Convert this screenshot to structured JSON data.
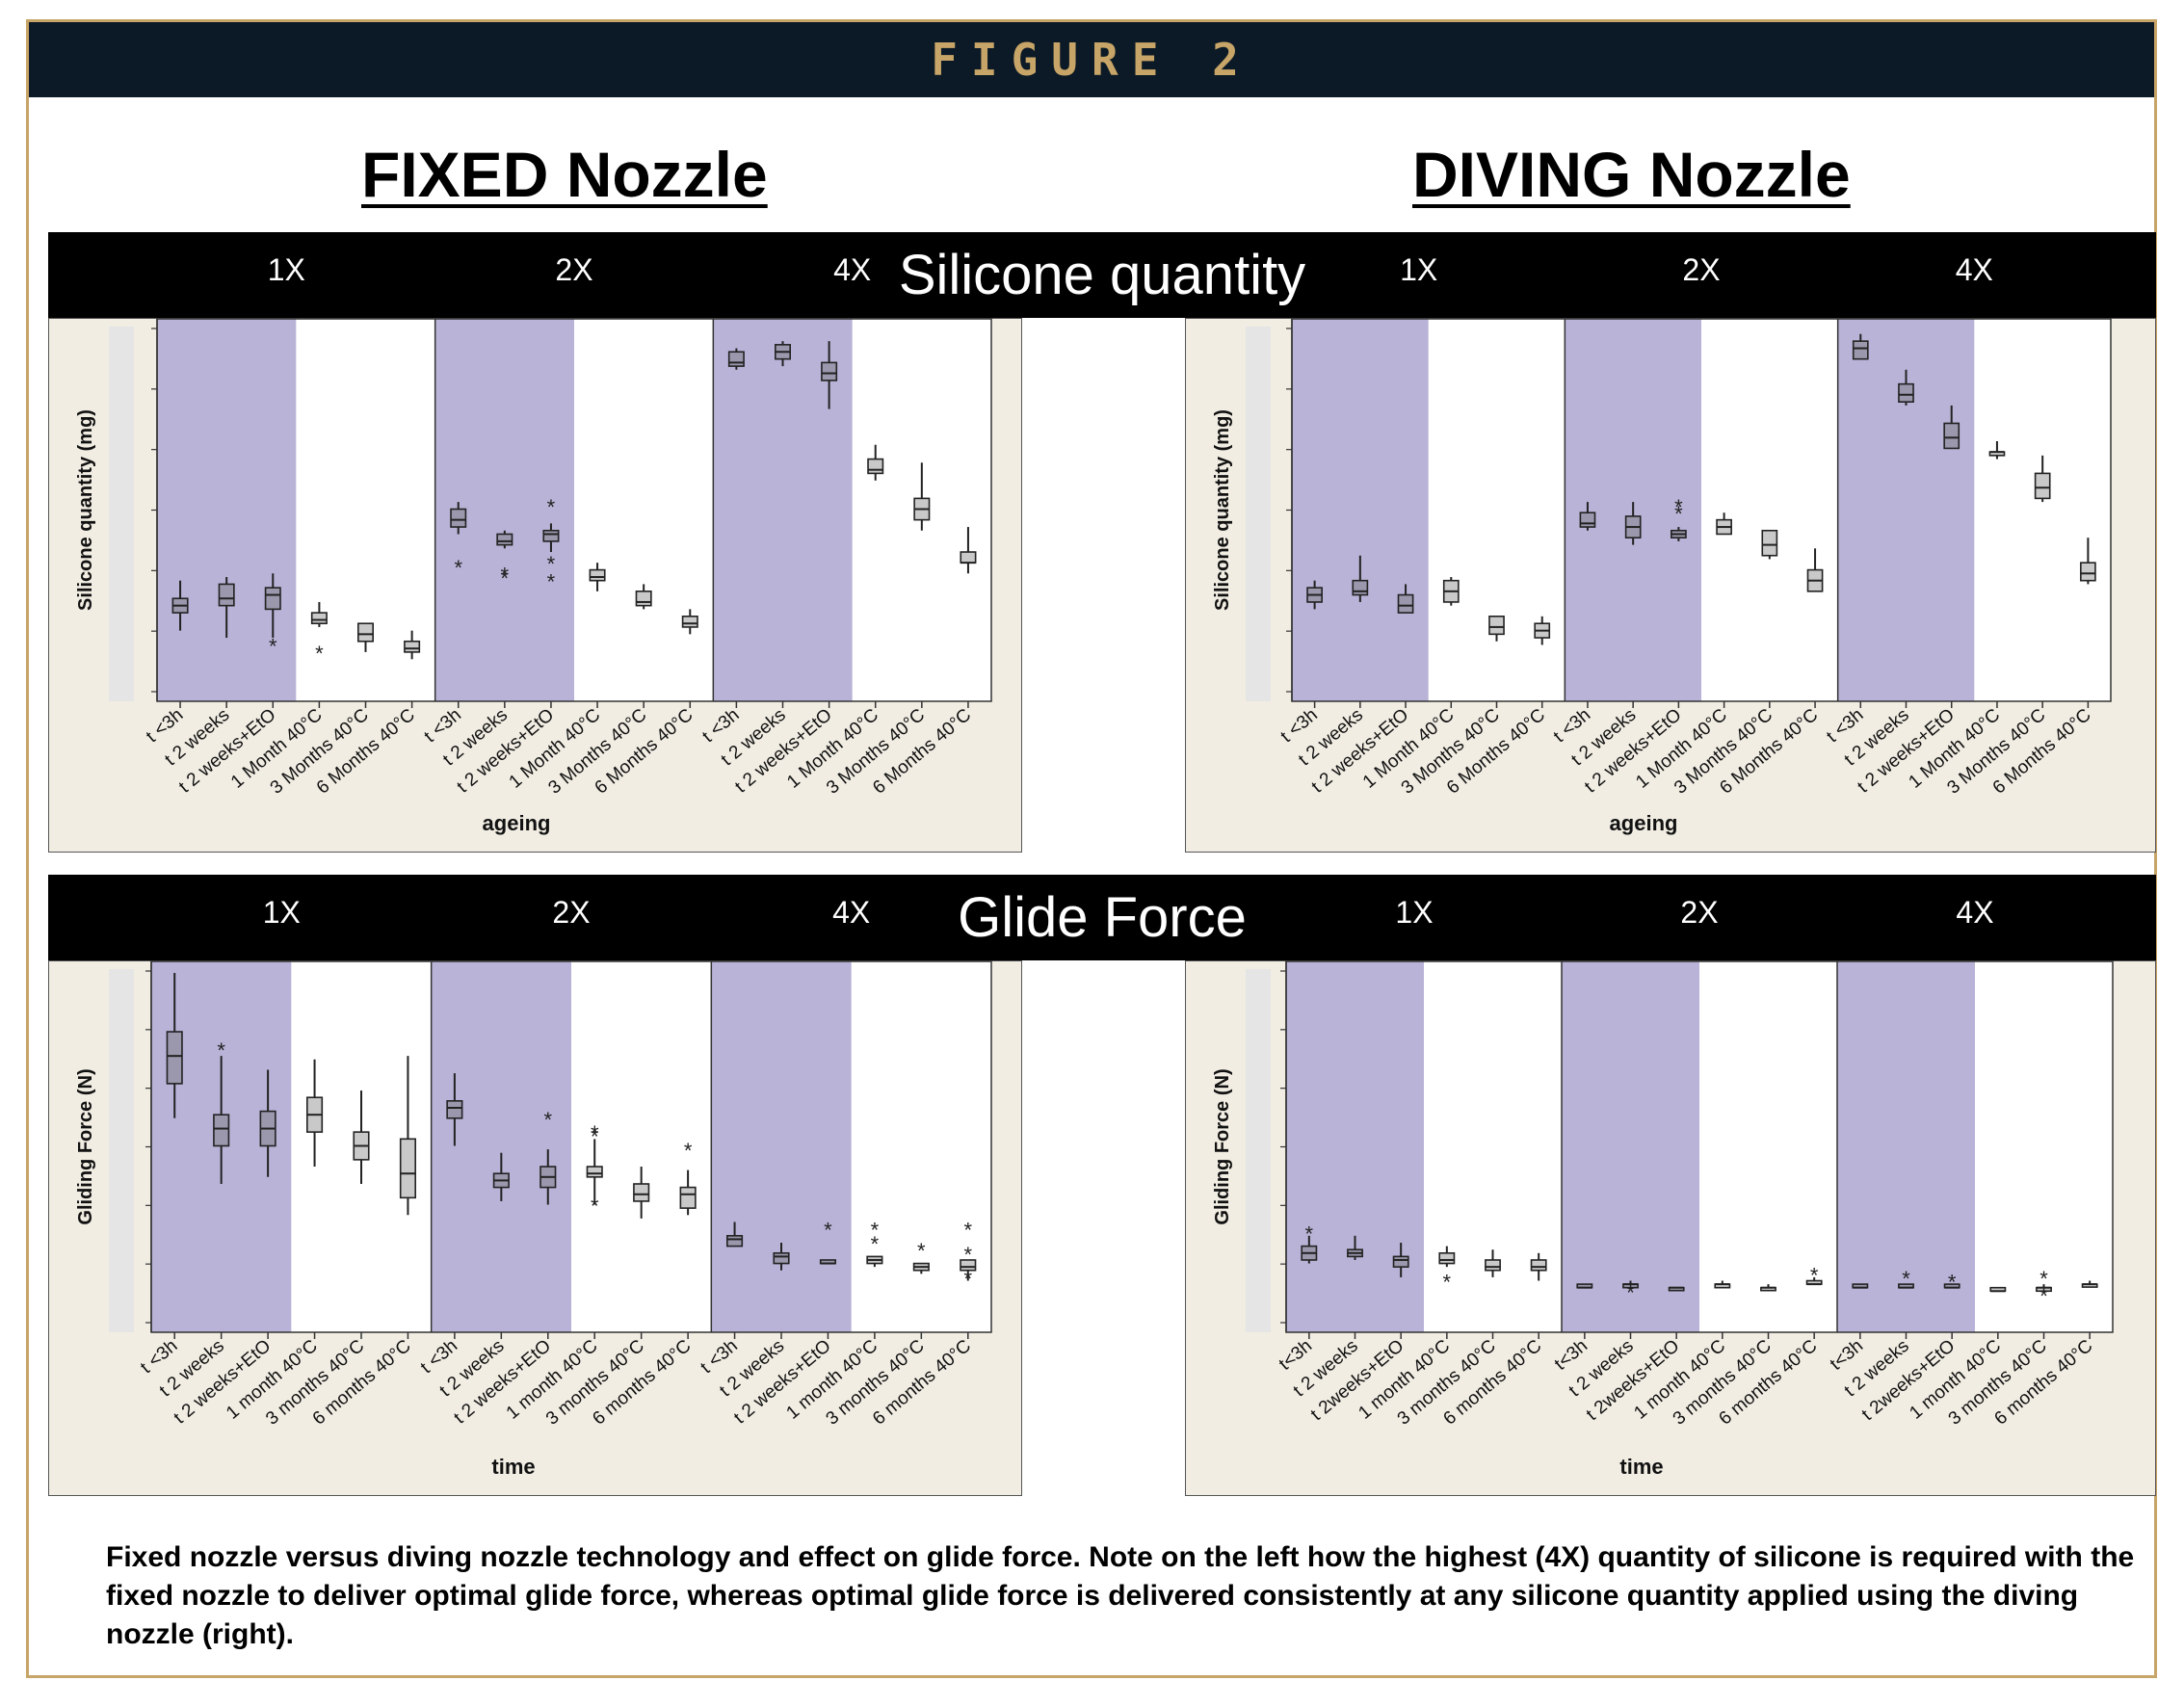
{
  "figure_label": "FIGURE 2",
  "nozzle_titles": {
    "fixed": "FIXED Nozzle",
    "diving": "DIVING Nozzle"
  },
  "section_titles": {
    "silicone": "Silicone quantity",
    "glide": "Glide Force"
  },
  "caption": "Fixed nozzle versus diving nozzle technology and effect on glide force. Note on the left how the highest (4X) quantity of silicone is required with the fixed nozzle to deliver optimal glide force, whereas optimal glide force is delivered consistently at any silicone quantity applied using the diving nozzle (right).",
  "colors": {
    "header_bg": "#0b1a26",
    "gold": "#c7a467",
    "panel_bg": "#f1ede3",
    "shade": "#b9b3d7",
    "box_fill": "#c9c9c9",
    "band": "#000000"
  },
  "chart_data": [
    {
      "type": "boxplot",
      "title": "",
      "ylabel": "Silicone quantity (mg)",
      "xlabel": "ageing",
      "ylim": [
        0,
        100
      ],
      "groups": [
        "1X",
        "2X",
        "4X"
      ],
      "categories": [
        "t <3h",
        "t 2 weeks",
        "t 2 weeks+EtO",
        "1 Month 40°C",
        "3 Months 40°C",
        "6 Months 40°C"
      ],
      "shaded_categories": 3,
      "boxes": [
        [
          [
            16,
            21,
            23,
            25,
            30
          ],
          [
            14,
            23,
            25,
            29,
            31
          ],
          [
            14,
            22,
            26,
            28,
            32
          ],
          [
            17,
            18,
            19,
            21,
            24
          ],
          [
            10,
            13,
            15,
            18,
            18
          ],
          [
            8,
            10,
            11,
            13,
            16
          ]
        ],
        [
          [
            43,
            45,
            47,
            50,
            52
          ],
          [
            39,
            40,
            41,
            43,
            44
          ],
          [
            38,
            41,
            43,
            44,
            46
          ],
          [
            27,
            30,
            31,
            33,
            35
          ],
          [
            22,
            23,
            24,
            27,
            29
          ],
          [
            15,
            17,
            18,
            20,
            22
          ]
        ],
        [
          [
            89,
            90,
            91,
            94,
            95
          ],
          [
            90,
            92,
            94,
            96,
            97
          ],
          [
            78,
            86,
            88,
            91,
            97
          ],
          [
            58,
            60,
            61,
            64,
            68
          ],
          [
            44,
            47,
            50,
            53,
            63
          ],
          [
            32,
            35,
            35,
            38,
            45
          ]
        ]
      ],
      "outliers": [
        [
          [],
          [],
          [
            12
          ],
          [
            10
          ],
          [],
          []
        ],
        [
          [
            34
          ],
          [
            31,
            32
          ],
          [
            30,
            35,
            51
          ],
          [],
          [],
          []
        ],
        [
          [],
          [],
          [],
          [],
          [],
          []
        ]
      ]
    },
    {
      "type": "boxplot",
      "title": "",
      "ylabel": "Silicone quantity (mg)",
      "xlabel": "ageing",
      "ylim": [
        0,
        100
      ],
      "groups": [
        "1X",
        "2X",
        "4X"
      ],
      "categories": [
        "t <3h",
        "t 2 weeks",
        "t 2 weeks+EtO",
        "1 Month 40°C",
        "3 Months 40°C",
        "6 Months 40°C"
      ],
      "shaded_categories": 3,
      "boxes": [
        [
          [
            22,
            24,
            26,
            28,
            30
          ],
          [
            24,
            26,
            27,
            30,
            37
          ],
          [
            21,
            21,
            23,
            26,
            29
          ],
          [
            23,
            24,
            27,
            30,
            31
          ],
          [
            13,
            15,
            17,
            20,
            20
          ],
          [
            12,
            14,
            16,
            18,
            20
          ]
        ],
        [
          [
            44,
            45,
            46,
            49,
            52
          ],
          [
            40,
            42,
            45,
            48,
            52
          ],
          [
            41,
            42,
            43,
            44,
            45
          ],
          [
            43,
            43,
            45,
            47,
            49
          ],
          [
            36,
            37,
            40,
            44,
            44
          ],
          [
            27,
            27,
            30,
            33,
            39
          ]
        ],
        [
          [
            92,
            92,
            95,
            97,
            99
          ],
          [
            79,
            80,
            82,
            85,
            89
          ],
          [
            67,
            67,
            70,
            74,
            79
          ],
          [
            64,
            65,
            66,
            66,
            69
          ],
          [
            52,
            53,
            56,
            60,
            65
          ],
          [
            29,
            30,
            32,
            35,
            42
          ]
        ]
      ],
      "outliers": [
        [
          [],
          [],
          [],
          [],
          [],
          []
        ],
        [
          [],
          [],
          [
            49,
            51
          ],
          [],
          [],
          []
        ],
        [
          [],
          [],
          [],
          [],
          [],
          []
        ]
      ]
    },
    {
      "type": "boxplot",
      "title": "",
      "ylabel": "Gliding Force (N)",
      "xlabel": "time",
      "ylim": [
        0,
        100
      ],
      "groups": [
        "1X",
        "2X",
        "4X"
      ],
      "categories": [
        "t <3h",
        "t 2 weeks",
        "t 2 weeks+EtO",
        "1 month 40°C",
        "3 months 40°C",
        "6 months 40°C"
      ],
      "shaded_categories": 3,
      "boxes": [
        [
          [
            58,
            68,
            76,
            83,
            100
          ],
          [
            39,
            50,
            55,
            59,
            76
          ],
          [
            41,
            50,
            55,
            60,
            72
          ],
          [
            44,
            54,
            59,
            64,
            75
          ],
          [
            39,
            46,
            50,
            54,
            66
          ],
          [
            30,
            35,
            42,
            52,
            76
          ]
        ],
        [
          [
            50,
            58,
            61,
            63,
            71
          ],
          [
            34,
            38,
            40,
            42,
            48
          ],
          [
            33,
            38,
            41,
            44,
            49
          ],
          [
            33,
            41,
            42,
            44,
            52
          ],
          [
            29,
            34,
            36,
            39,
            44
          ],
          [
            30,
            32,
            36,
            38,
            43
          ]
        ],
        [
          [
            21,
            21,
            23,
            24,
            28
          ],
          [
            14,
            16,
            18,
            19,
            22
          ],
          [
            16,
            16,
            16,
            17,
            16
          ],
          [
            15,
            16,
            17,
            18,
            18
          ],
          [
            13,
            14,
            15,
            16,
            16
          ],
          [
            11,
            14,
            15,
            17,
            17
          ]
        ]
      ],
      "outliers": [
        [
          [],
          [
            78
          ],
          [],
          [],
          [],
          []
        ],
        [
          [],
          [],
          [
            58
          ],
          [
            53,
            54,
            33
          ],
          [],
          [
            49
          ]
        ],
        [
          [],
          [],
          [
            26
          ],
          [
            22,
            26
          ],
          [
            20
          ],
          [
            12,
            19,
            26
          ]
        ]
      ]
    },
    {
      "type": "boxplot",
      "title": "",
      "ylabel": "Gliding Force (N)",
      "xlabel": "time",
      "ylim": [
        0,
        100
      ],
      "groups": [
        "1X",
        "2X",
        "4X"
      ],
      "categories": [
        "t<3h",
        "t 2 weeks",
        "t 2weeks+EtO",
        "1 month 40°C",
        "3 months 40°C",
        "6 months 40°C"
      ],
      "shaded_categories": 3,
      "boxes": [
        [
          [
            16,
            17,
            19,
            21,
            24
          ],
          [
            17,
            18,
            19,
            20,
            24
          ],
          [
            12,
            15,
            17,
            18,
            22
          ],
          [
            15,
            16,
            17,
            19,
            21
          ],
          [
            12,
            14,
            15,
            17,
            20
          ],
          [
            11,
            14,
            15,
            17,
            19
          ]
        ],
        [
          [
            9,
            9,
            9,
            10,
            10
          ],
          [
            9,
            9,
            10,
            10,
            11
          ],
          [
            9,
            9,
            9,
            9,
            9
          ],
          [
            9,
            9,
            10,
            10,
            11
          ],
          [
            9,
            9,
            9,
            9,
            10
          ],
          [
            10,
            10,
            10,
            11,
            12
          ]
        ],
        [
          [
            9,
            9,
            9,
            10,
            10
          ],
          [
            9,
            9,
            9,
            10,
            10
          ],
          [
            9,
            9,
            9,
            10,
            10
          ],
          [
            8,
            8,
            8,
            9,
            9
          ],
          [
            8,
            8,
            9,
            9,
            10
          ],
          [
            10,
            10,
            10,
            10,
            11
          ]
        ]
      ],
      "outliers": [
        [
          [
            25
          ],
          [],
          [],
          [
            11
          ],
          [],
          []
        ],
        [
          [],
          [
            8
          ],
          [],
          [],
          [],
          [
            13
          ]
        ],
        [
          [],
          [
            12
          ],
          [
            11
          ],
          [],
          [
            7,
            12
          ],
          []
        ]
      ]
    }
  ]
}
